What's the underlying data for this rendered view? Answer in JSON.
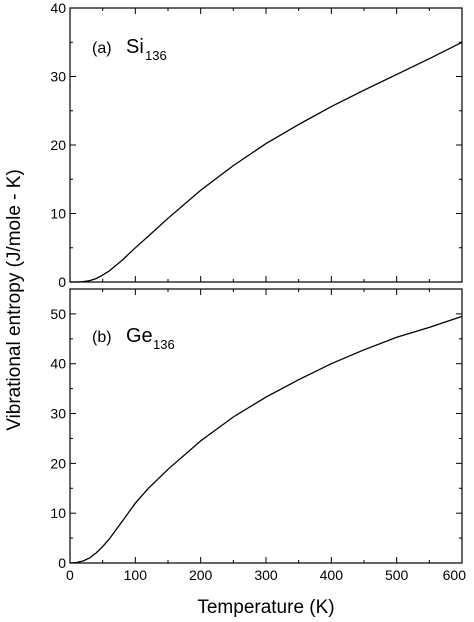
{
  "chart_data": [
    {
      "type": "line",
      "panel_label": "(a)",
      "label_symbol": "Si",
      "label_subscript": "136",
      "xlim": [
        0,
        600
      ],
      "ylim": [
        0,
        40
      ],
      "yticks": [
        0,
        10,
        20,
        30,
        40
      ],
      "series": [
        {
          "x": [
            0,
            10,
            20,
            30,
            40,
            50,
            60,
            80,
            100,
            120,
            150,
            200,
            250,
            300,
            350,
            400,
            450,
            500,
            550,
            600
          ],
          "y": [
            0,
            0.0,
            0.05,
            0.2,
            0.5,
            1.0,
            1.6,
            3.2,
            5.0,
            6.7,
            9.3,
            13.4,
            17.0,
            20.2,
            23.0,
            25.6,
            28.0,
            30.3,
            32.6,
            35.0
          ]
        }
      ]
    },
    {
      "type": "line",
      "panel_label": "(b)",
      "label_symbol": "Ge",
      "label_subscript": "136",
      "xlim": [
        0,
        600
      ],
      "ylim": [
        0,
        55
      ],
      "yticks": [
        0,
        10,
        20,
        30,
        40,
        50
      ],
      "xticks": [
        0,
        100,
        200,
        300,
        400,
        500,
        600
      ],
      "series": [
        {
          "x": [
            0,
            10,
            20,
            30,
            40,
            50,
            60,
            80,
            100,
            120,
            150,
            200,
            250,
            300,
            350,
            400,
            450,
            500,
            550,
            600
          ],
          "y": [
            0,
            0.1,
            0.4,
            1.0,
            2.0,
            3.3,
            4.8,
            8.4,
            12.0,
            15.0,
            18.8,
            24.5,
            29.3,
            33.3,
            36.8,
            40.0,
            42.8,
            45.3,
            47.3,
            49.5
          ]
        }
      ]
    }
  ],
  "ylabel": "Vibrational entropy (J/mole - K)",
  "xlabel": "Temperature (K)"
}
